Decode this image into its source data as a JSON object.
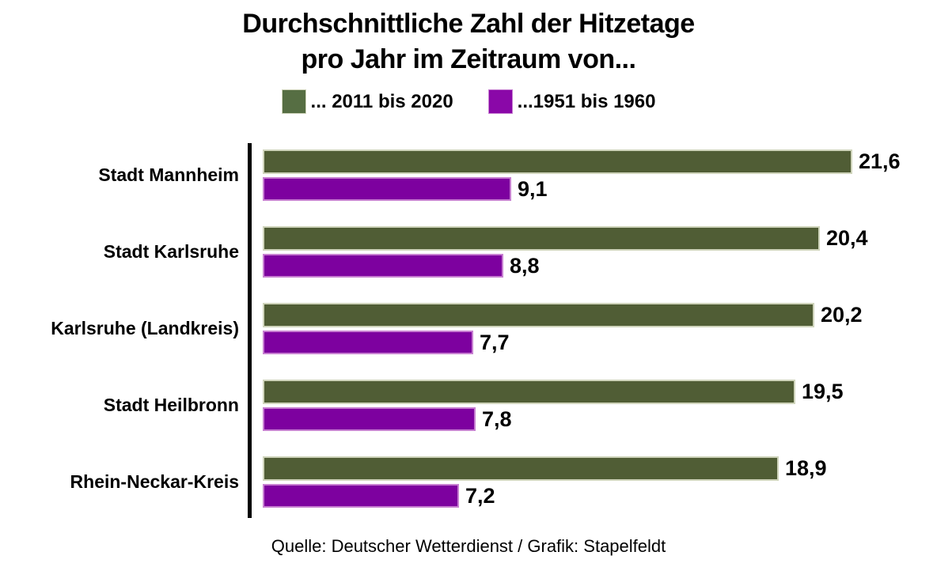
{
  "title": {
    "line1": "Durchschnittliche Zahl der Hitzetage",
    "line2": "pro Jahr im Zeitraum von..."
  },
  "source": "Quelle: Deutscher Wetterdienst / Grafik: Stapelfeldt",
  "chart_data": {
    "type": "bar",
    "orientation": "horizontal",
    "title": "Durchschnittliche Zahl der Hitzetage pro Jahr im Zeitraum von...",
    "categories": [
      "Stadt Mannheim",
      "Stadt Karlsruhe",
      "Karlsruhe (Landkreis)",
      "Stadt Heilbronn",
      "Rhein-Neckar-Kreis"
    ],
    "series": [
      {
        "name": "... 2011 bis 2020",
        "values": [
          21.6,
          20.4,
          20.2,
          19.5,
          18.9
        ],
        "value_labels": [
          "21,6",
          "20,4",
          "20,2",
          "19,5",
          "18,9"
        ],
        "color": "#505d35",
        "border_color": "#cfd4bb",
        "legend_color": "#566e43"
      },
      {
        "name": "...1951 bis 1960",
        "values": [
          9.1,
          8.8,
          7.7,
          7.8,
          7.2
        ],
        "value_labels": [
          "9,1",
          "8,8",
          "7,7",
          "7,8",
          "7,2"
        ],
        "color": "#7d019f",
        "border_color": "#c77fd1",
        "legend_color": "#8a08a8"
      }
    ],
    "xlim": [
      0,
      25
    ],
    "grid": false,
    "legend_position": "top",
    "axis_color": "#000000",
    "decimal_separator": "comma"
  }
}
